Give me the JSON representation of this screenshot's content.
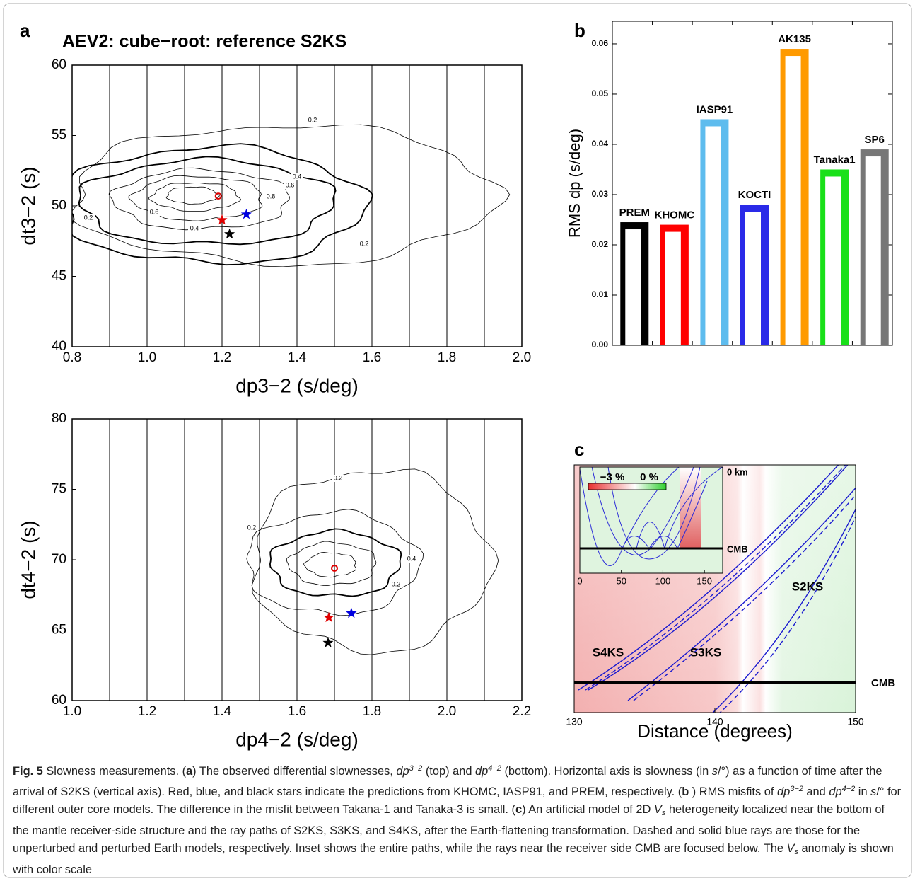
{
  "chart_data": [
    {
      "type": "contour",
      "panel_label": "a",
      "title": "AEV2:  cube−root: reference S2KS",
      "xlabel": "dp3−2 (s/deg)",
      "ylabel": "dt3−2 (s)",
      "xlim": [
        0.8,
        2.0
      ],
      "xticks": [
        0.8,
        {
          "value": 1,
          "label": "1.0"
        },
        1.2,
        1.4,
        1.6,
        1.8,
        {
          "value": 2,
          "label": "2.0"
        }
      ],
      "ylim": [
        40,
        60
      ],
      "yticks": [
        40,
        45,
        50,
        55,
        60
      ],
      "vlines": [
        0.9,
        1.0,
        1.1,
        1.2,
        1.3,
        1.4,
        1.5,
        1.6,
        1.7,
        1.8,
        1.9
      ],
      "contour_levels": [
        0.2,
        0.4,
        0.6,
        0.8
      ],
      "markers": [
        {
          "shape": "circle",
          "color": "#e00000",
          "x": 1.19,
          "y": 50.7
        },
        {
          "shape": "star",
          "color": "#e00000",
          "x": 1.2,
          "y": 49.0
        },
        {
          "shape": "star",
          "color": "#0000e0",
          "x": 1.265,
          "y": 49.4
        },
        {
          "shape": "star",
          "color": "#000000",
          "x": 1.22,
          "y": 48.0
        }
      ]
    },
    {
      "type": "contour",
      "xlabel": "dp4−2 (s/deg)",
      "ylabel": "dt4−2 (s)",
      "xlim": [
        1.0,
        2.2
      ],
      "xticks": [
        {
          "value": 1,
          "label": "1.0"
        },
        1.2,
        1.4,
        1.6,
        1.8,
        {
          "value": 2,
          "label": "2.0"
        },
        2.2
      ],
      "ylim": [
        60,
        80
      ],
      "yticks": [
        60,
        65,
        70,
        75,
        80
      ],
      "vlines": [
        1.1,
        1.2,
        1.3,
        1.4,
        1.5,
        1.6,
        1.7,
        1.8,
        1.9,
        2.0,
        2.1
      ],
      "contour_levels": [
        0.2,
        0.4
      ],
      "markers": [
        {
          "shape": "circle",
          "color": "#e00000",
          "x": 1.7,
          "y": 69.4
        },
        {
          "shape": "star",
          "color": "#e00000",
          "x": 1.685,
          "y": 65.9
        },
        {
          "shape": "star",
          "color": "#0000e0",
          "x": 1.745,
          "y": 66.2
        },
        {
          "shape": "star",
          "color": "#000000",
          "x": 1.683,
          "y": 64.1
        }
      ]
    },
    {
      "type": "bar",
      "panel_label": "b",
      "ylabel": "RMS dp (s/deg)",
      "categories": [
        "PREM",
        "KHOMC",
        "IASP91",
        "KOCTI",
        "AK135",
        "Tanaka1",
        "SP6"
      ],
      "values": [
        0.0245,
        0.024,
        0.045,
        0.028,
        0.059,
        0.035,
        0.039
      ],
      "colors": [
        "#000000",
        "#ff0000",
        "#5ebcee",
        "#2a2ae8",
        "#ff9a00",
        "#19e019",
        "#777777"
      ],
      "ylim": [
        0,
        0.0645
      ],
      "yticks": [
        {
          "value": 0,
          "label": "0.00"
        },
        0.01,
        0.02,
        0.03,
        0.04,
        0.05,
        0.06
      ]
    },
    {
      "type": "raypath",
      "panel_label": "c",
      "xlabel": "Distance (degrees)",
      "xlim": [
        130,
        150
      ],
      "xticks": [
        130,
        140,
        150
      ],
      "ray_labels": [
        "S4KS",
        "S3KS",
        "S2KS"
      ],
      "cmb_label": "CMB",
      "inset": {
        "xlim": [
          0,
          172
        ],
        "xticks": [
          0,
          50,
          100,
          150
        ],
        "top_label": "0 km",
        "cmb_label": "CMB",
        "colorbar_labels": [
          "−3 %",
          "0 %"
        ]
      }
    }
  ],
  "caption": [
    {
      "text": "Fig. 5",
      "style": "b"
    },
    {
      "text": " Slowness measurements. ("
    },
    {
      "text": "a",
      "style": "b"
    },
    {
      "text": ") The observed differential slownesses, "
    },
    {
      "text": "dp",
      "style": "i"
    },
    {
      "text": "3−2",
      "style": "sup"
    },
    {
      "text": " (top) and "
    },
    {
      "text": "dp",
      "style": "i"
    },
    {
      "text": "4−2",
      "style": "sup"
    },
    {
      "text": " (bottom). Horizontal axis is slowness (in "
    },
    {
      "text": "s",
      "style": "i"
    },
    {
      "text": "/°) as a function of time after the arrival of S2KS (vertical axis). Red, blue, and black stars indicate the predictions from KHOMC, IASP91, and PREM, respectively. ("
    },
    {
      "text": "b",
      "style": "b"
    },
    {
      "text": " ) RMS misfits of "
    },
    {
      "text": "dp",
      "style": "i"
    },
    {
      "text": "3−2",
      "style": "sup"
    },
    {
      "text": " and "
    },
    {
      "text": "dp",
      "style": "i"
    },
    {
      "text": "4−2",
      "style": "sup"
    },
    {
      "text": " in "
    },
    {
      "text": "s",
      "style": "i"
    },
    {
      "text": "/° for different outer core models. The difference in the misfit between Takana-1 and Tanaka-3 is small. ("
    },
    {
      "text": "c",
      "style": "b"
    },
    {
      "text": ") An artificial model of 2D "
    },
    {
      "text": "V",
      "style": "i"
    },
    {
      "text": "s",
      "style": "sub"
    },
    {
      "text": "  heterogeneity localized near the bottom of the mantle receiver-side structure and the ray paths of S2KS, S3KS, and S4KS, after the Earth-flattening transformation. Dashed and solid blue rays are those for the unperturbed and perturbed Earth models, respectively. Inset shows the entire paths, while the rays near the receiver side CMB are focused below. The "
    },
    {
      "text": "V",
      "style": "i"
    },
    {
      "text": "s",
      "style": "sub"
    },
    {
      "text": "  anomaly is shown with color scale"
    }
  ]
}
